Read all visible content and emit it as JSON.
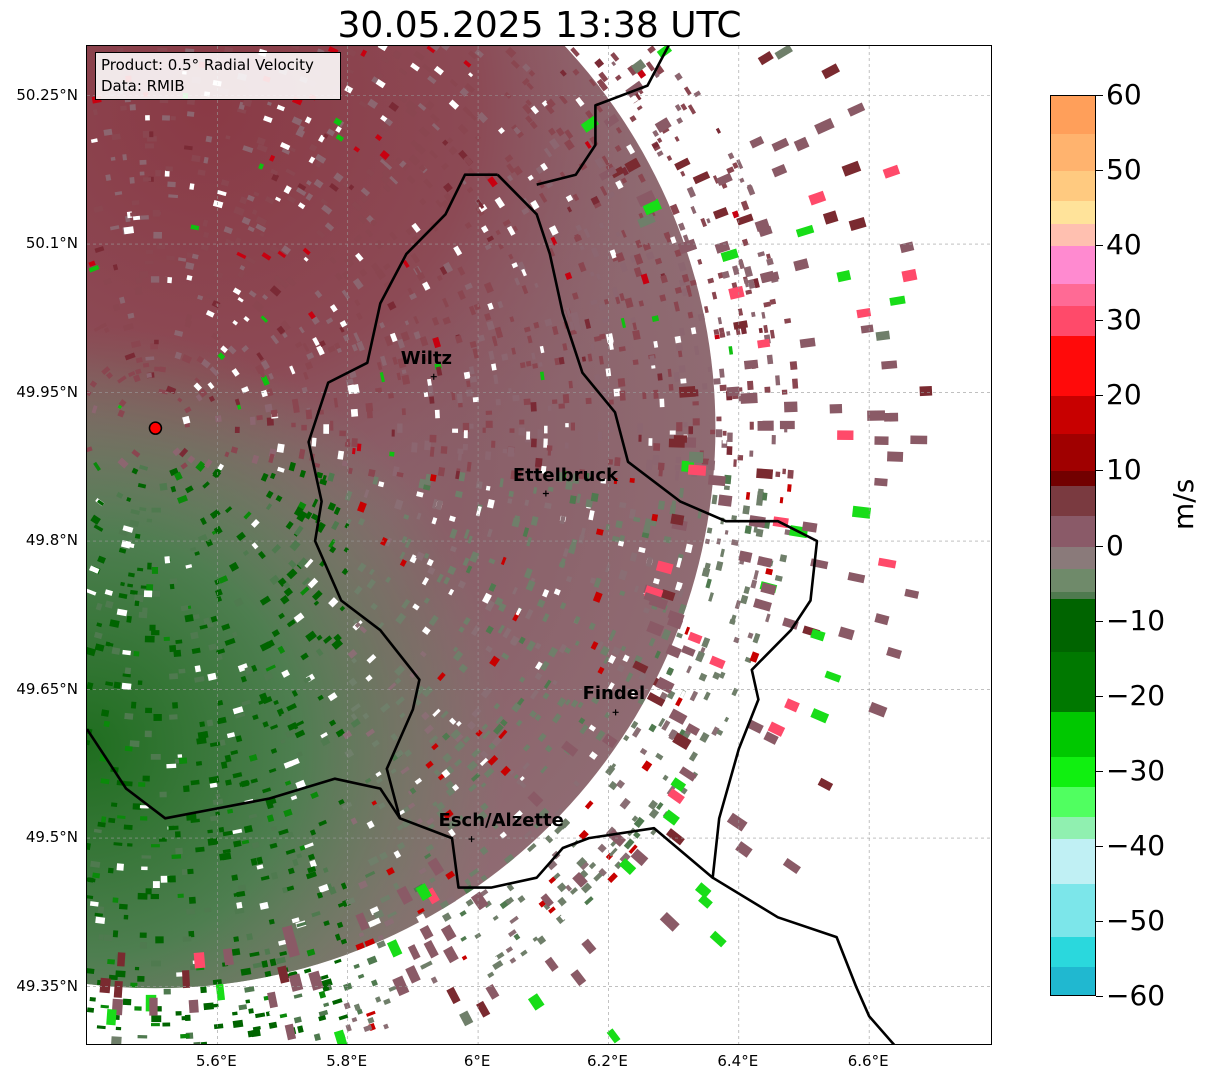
{
  "title": "30.05.2025 13:38 UTC",
  "info": {
    "product": "Product: 0.5° Radial Velocity",
    "source": "Data: RMIB"
  },
  "map": {
    "lat_range": [
      49.29,
      50.3
    ],
    "lon_range": [
      5.4,
      6.79
    ],
    "gridlines": true,
    "lat_ticks": [
      {
        "value": 50.25,
        "label": "50.25°N"
      },
      {
        "value": 50.1,
        "label": "50.1°N"
      },
      {
        "value": 49.95,
        "label": "49.95°N"
      },
      {
        "value": 49.8,
        "label": "49.8°N"
      },
      {
        "value": 49.65,
        "label": "49.65°N"
      },
      {
        "value": 49.5,
        "label": "49.5°N"
      },
      {
        "value": 49.35,
        "label": "49.35°N"
      }
    ],
    "lon_ticks": [
      {
        "value": 5.6,
        "label": "5.6°E"
      },
      {
        "value": 5.8,
        "label": "5.8°E"
      },
      {
        "value": 6.0,
        "label": "6°E"
      },
      {
        "value": 6.2,
        "label": "6.2°E"
      },
      {
        "value": 6.4,
        "label": "6.4°E"
      },
      {
        "value": 6.6,
        "label": "6.6°E"
      }
    ],
    "radar_site": {
      "lon": 5.505,
      "lat": 49.914
    },
    "cities": [
      {
        "name": "Wiltz",
        "lon": 5.932,
        "lat": 49.966
      },
      {
        "name": "Ettelbruck",
        "lon": 6.104,
        "lat": 49.848
      },
      {
        "name": "Findel",
        "lon": 6.211,
        "lat": 49.627
      },
      {
        "name": "Esch/Alzette",
        "lon": 5.99,
        "lat": 49.499
      }
    ],
    "luxembourg_border": [
      [
        6.03,
        50.17
      ],
      [
        5.98,
        50.17
      ],
      [
        5.95,
        50.13
      ],
      [
        5.89,
        50.09
      ],
      [
        5.85,
        50.04
      ],
      [
        5.83,
        49.98
      ],
      [
        5.77,
        49.96
      ],
      [
        5.74,
        49.9
      ],
      [
        5.76,
        49.84
      ],
      [
        5.75,
        49.8
      ],
      [
        5.79,
        49.74
      ],
      [
        5.85,
        49.71
      ],
      [
        5.91,
        49.66
      ],
      [
        5.9,
        49.63
      ],
      [
        5.86,
        49.57
      ],
      [
        5.88,
        49.52
      ],
      [
        5.96,
        49.5
      ],
      [
        5.97,
        49.45
      ],
      [
        6.02,
        49.45
      ],
      [
        6.09,
        49.46
      ],
      [
        6.13,
        49.49
      ],
      [
        6.17,
        49.5
      ],
      [
        6.27,
        49.51
      ],
      [
        6.36,
        49.46
      ],
      [
        6.37,
        49.52
      ],
      [
        6.4,
        49.59
      ],
      [
        6.43,
        49.64
      ],
      [
        6.42,
        49.67
      ],
      [
        6.48,
        49.71
      ],
      [
        6.51,
        49.74
      ],
      [
        6.52,
        49.8
      ],
      [
        6.46,
        49.82
      ],
      [
        6.38,
        49.82
      ],
      [
        6.31,
        49.84
      ],
      [
        6.23,
        49.88
      ],
      [
        6.21,
        49.93
      ],
      [
        6.16,
        49.97
      ],
      [
        6.13,
        50.03
      ],
      [
        6.11,
        50.09
      ],
      [
        6.09,
        50.13
      ],
      [
        6.03,
        50.17
      ]
    ],
    "country_border_east": [
      [
        6.3,
        50.31
      ],
      [
        6.26,
        50.26
      ],
      [
        6.18,
        50.24
      ],
      [
        6.18,
        50.2
      ],
      [
        6.15,
        50.17
      ],
      [
        6.09,
        50.16
      ]
    ],
    "country_border_south": [
      [
        5.4,
        49.61
      ],
      [
        5.43,
        49.58
      ],
      [
        5.46,
        49.55
      ],
      [
        5.52,
        49.52
      ],
      [
        5.6,
        49.53
      ],
      [
        5.68,
        49.54
      ],
      [
        5.78,
        49.56
      ],
      [
        5.85,
        49.55
      ],
      [
        5.88,
        49.52
      ]
    ],
    "country_border_southeast": [
      [
        6.36,
        49.46
      ],
      [
        6.46,
        49.42
      ],
      [
        6.55,
        49.4
      ],
      [
        6.58,
        49.35
      ],
      [
        6.6,
        49.32
      ],
      [
        6.64,
        49.29
      ]
    ]
  },
  "colorbar": {
    "unit": "m/s",
    "vmin": -60,
    "vmax": 60,
    "ticks": [
      {
        "value": 60,
        "label": "60"
      },
      {
        "value": 50,
        "label": "50"
      },
      {
        "value": 40,
        "label": "40"
      },
      {
        "value": 30,
        "label": "30"
      },
      {
        "value": 20,
        "label": "20"
      },
      {
        "value": 10,
        "label": "10"
      },
      {
        "value": 0,
        "label": "0"
      },
      {
        "value": -10,
        "label": "−10"
      },
      {
        "value": -20,
        "label": "−20"
      },
      {
        "value": -30,
        "label": "−30"
      },
      {
        "value": -40,
        "label": "−40"
      },
      {
        "value": -50,
        "label": "−50"
      },
      {
        "value": -60,
        "label": "−60"
      }
    ],
    "stops": [
      {
        "value": 60,
        "color": "#ff9f5a"
      },
      {
        "value": 55,
        "color": "#ffb36e"
      },
      {
        "value": 50,
        "color": "#ffca80"
      },
      {
        "value": 46,
        "color": "#ffe39a"
      },
      {
        "value": 43,
        "color": "#ffc0b0"
      },
      {
        "value": 40,
        "color": "#ff8ad0"
      },
      {
        "value": 35,
        "color": "#ff6a95"
      },
      {
        "value": 32,
        "color": "#ff4a6a"
      },
      {
        "value": 28,
        "color": "#ff0a0a"
      },
      {
        "value": 20,
        "color": "#c80000"
      },
      {
        "value": 15,
        "color": "#a00000"
      },
      {
        "value": 10,
        "color": "#720000"
      },
      {
        "value": 8,
        "color": "#7a3a40"
      },
      {
        "value": 4,
        "color": "#8a5a68"
      },
      {
        "value": 0,
        "color": "#8a7a7a"
      },
      {
        "value": -3,
        "color": "#6f8a6a"
      },
      {
        "value": -6,
        "color": "#4f7a4f"
      },
      {
        "value": -7,
        "color": "#006400"
      },
      {
        "value": -14,
        "color": "#007800"
      },
      {
        "value": -22,
        "color": "#00c800"
      },
      {
        "value": -28,
        "color": "#10f010"
      },
      {
        "value": -32,
        "color": "#50ff60"
      },
      {
        "value": -36,
        "color": "#90f0b0"
      },
      {
        "value": -39,
        "color": "#c0f0f4"
      },
      {
        "value": -45,
        "color": "#7ce6ea"
      },
      {
        "value": -52,
        "color": "#2ad8dd"
      },
      {
        "value": -56,
        "color": "#20b8d0"
      },
      {
        "value": -60,
        "color": "#1a7ecb"
      }
    ]
  }
}
